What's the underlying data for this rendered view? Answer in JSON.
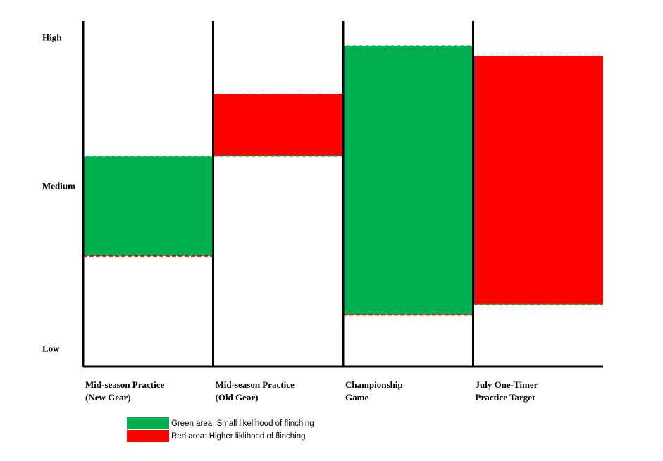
{
  "chart_data": {
    "type": "floating-bar",
    "categories": [
      [
        "Mid-season Practice",
        "(New Gear)"
      ],
      [
        "Mid-season Practice",
        "(Old Gear)"
      ],
      [
        "Championship",
        "Game"
      ],
      [
        "July One-Timer",
        "Practice Target"
      ]
    ],
    "bars": [
      {
        "low": 3.2,
        "high": 6.1,
        "color": "#00b050"
      },
      {
        "low": 6.1,
        "high": 7.9,
        "color": "#ff0000"
      },
      {
        "low": 1.5,
        "high": 9.3,
        "color": "#00b050"
      },
      {
        "low": 1.8,
        "high": 9.0,
        "color": "#ff0000"
      }
    ],
    "ylim": [
      0,
      10
    ],
    "yticks": [
      {
        "value": 0.5,
        "label": "Low"
      },
      {
        "value": 5.2,
        "label": "Medium"
      },
      {
        "value": 9.5,
        "label": "High"
      }
    ],
    "legend": [
      {
        "name": "Green area: Small likelihood of flinching",
        "color": "#00b050"
      },
      {
        "name": "Red area: Higher liklihood of flinching",
        "color": "#ff0000"
      }
    ]
  }
}
